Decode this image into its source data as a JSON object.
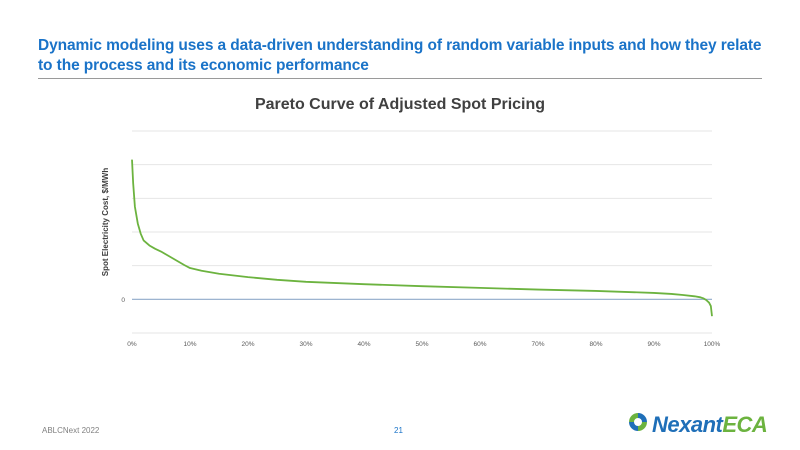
{
  "slide": {
    "headline": "Dynamic modeling uses a data-driven understanding of random variable inputs and how they relate to the process and its economic performance",
    "footer_left": "ABLCNext 2022",
    "page_number": "21",
    "logo": {
      "part1": "Nexant",
      "part2": "ECA"
    }
  },
  "colors": {
    "title": "#1a73c8",
    "curve": "#6cb33f",
    "zero_line": "#8faac9",
    "grid": "#e6e6e6",
    "logo_blue": "#1f6fb8",
    "logo_green": "#6cb33f"
  },
  "chart_data": {
    "type": "line",
    "title": "Pareto Curve of Adjusted Spot Pricing",
    "xlabel": "",
    "ylabel": "Spot Electricity Cost, $/MWh",
    "x_ticks": [
      "0%",
      "10%",
      "20%",
      "30%",
      "40%",
      "50%",
      "60%",
      "70%",
      "80%",
      "90%",
      "100%"
    ],
    "y_ticks": [
      "0"
    ],
    "xlim": [
      0,
      100
    ],
    "ylim": [
      -1,
      5
    ],
    "grid": true,
    "legend": "none",
    "series": [
      {
        "x": [
          0,
          0.2,
          0.5,
          1,
          1.5,
          2,
          3,
          4,
          5,
          6,
          7,
          8,
          9,
          10,
          12,
          15,
          20,
          25,
          30,
          40,
          50,
          60,
          70,
          80,
          85,
          90,
          93,
          95,
          97,
          98,
          98.5,
          99,
          99.5,
          99.8,
          100
        ],
        "y": [
          4.15,
          3.45,
          2.75,
          2.25,
          1.95,
          1.75,
          1.6,
          1.5,
          1.42,
          1.32,
          1.22,
          1.12,
          1.02,
          0.93,
          0.85,
          0.76,
          0.66,
          0.58,
          0.52,
          0.45,
          0.39,
          0.34,
          0.29,
          0.25,
          0.22,
          0.19,
          0.16,
          0.13,
          0.09,
          0.06,
          0.03,
          -0.02,
          -0.1,
          -0.2,
          -0.5
        ]
      }
    ]
  }
}
